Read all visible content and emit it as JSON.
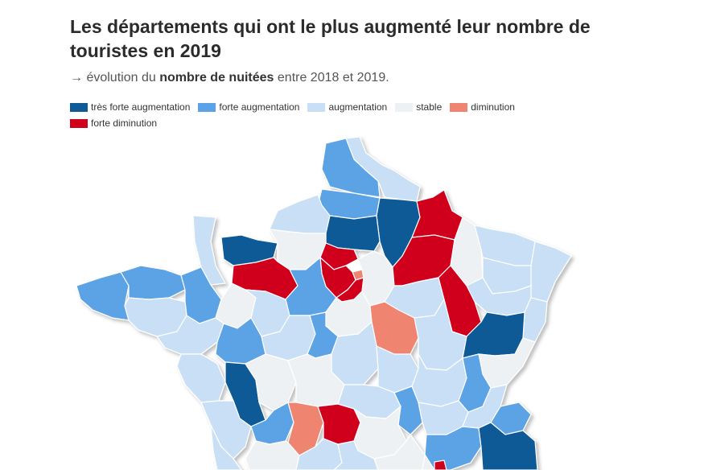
{
  "header": {
    "title": "Les départements qui ont le plus augmenté leur nombre de touristes en 2019",
    "subtitle_arrow": "→ évolution du",
    "subtitle_bold": "nombre de nuitées",
    "subtitle_rest": "entre 2018 et 2019."
  },
  "legend": [
    {
      "label": "très forte augmentation",
      "color": "#0f5a97"
    },
    {
      "label": "forte augmentation",
      "color": "#5ba3e6"
    },
    {
      "label": "augmentation",
      "color": "#c8dff5"
    },
    {
      "label": "stable",
      "color": "#eef1f3"
    },
    {
      "label": "diminution",
      "color": "#ef8470"
    },
    {
      "label": "forte diminution",
      "color": "#d0021b"
    }
  ],
  "map": {
    "region": "France",
    "categories": {
      "tres_forte": "très forte augmentation",
      "forte": "forte augmentation",
      "augmentation": "augmentation",
      "stable": "stable",
      "diminution": "diminution",
      "forte_diminution": "forte diminution"
    }
  }
}
